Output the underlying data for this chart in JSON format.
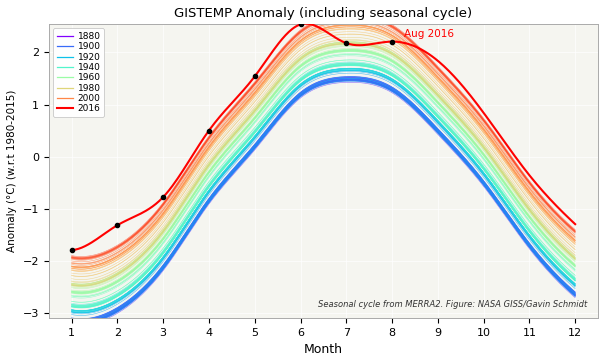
{
  "title": "GISTEMP Anomaly (including seasonal cycle)",
  "xlabel": "Month",
  "ylabel": "Anomaly (°C) (w.r.t 1980-2015)",
  "footnote": "Seasonal cycle from MERRA2. Figure: NASA GISS/Gavin Schmidt",
  "annotation": "Aug 2016",
  "xlim": [
    0.5,
    12.5
  ],
  "ylim": [
    -3.1,
    2.55
  ],
  "xticks": [
    1,
    2,
    3,
    4,
    5,
    6,
    7,
    8,
    9,
    10,
    11,
    12
  ],
  "yticks": [
    -3,
    -2,
    -1,
    0,
    1,
    2
  ],
  "start_year": 1880,
  "end_year": 2016,
  "legend_years": [
    1880,
    1900,
    1920,
    1940,
    1960,
    1980,
    2000,
    2016
  ],
  "background_color": "#f5f5f0",
  "dot_months": [
    1,
    2,
    3,
    4,
    5,
    6,
    7,
    8
  ],
  "aug2016_x": 8,
  "aug2016_y": 2.21,
  "seasonal_base": [
    -2.82,
    -2.62,
    -1.8,
    -0.52,
    0.52,
    1.52,
    1.82,
    1.62,
    0.82,
    -0.18,
    -1.38,
    -2.32
  ]
}
